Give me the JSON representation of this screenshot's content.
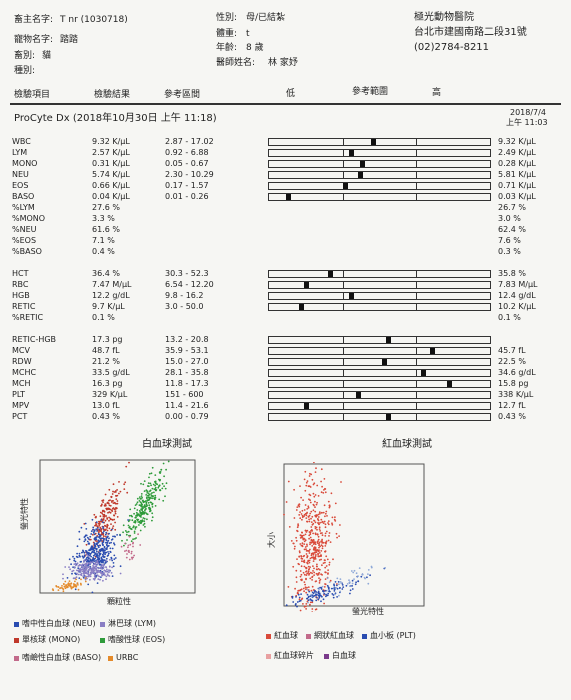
{
  "header": {
    "owner_label": "畜主名字:",
    "owner_value": "T nr (1030718)",
    "pet_label": "寵物名字:",
    "pet_value": "踏踏",
    "species_label": "畜別:",
    "species_value": "貓",
    "breed_label": "種別:",
    "breed_value": "",
    "sex_label": "性別:",
    "sex_value": "母/已結紮",
    "weight_label": "體重:",
    "weight_value": "t",
    "age_label": "年齡:",
    "age_value": "8 歲",
    "vet_label": "醫師姓名:",
    "vet_value": "林 家妤",
    "hospital_name": "極光動物醫院",
    "hospital_address": "台北市建國南路二段31號",
    "hospital_phone": "(02)2784-8211"
  },
  "columns": {
    "item": "檢驗項目",
    "result": "檢驗結果",
    "reference": "參考區間",
    "low": "低",
    "ref_range": "參考範圍",
    "high": "高"
  },
  "section": {
    "title": "ProCyte Dx (2018年10月30日 上午 11:18)",
    "history_date": "2018/7/4",
    "history_time": "上午 11:03"
  },
  "rows": [
    {
      "name": "WBC",
      "result": "9.32 K/µL",
      "ref": "2.87 - 17.02",
      "prev": "9.32 K/µL",
      "level": 0.47,
      "bar": "yes",
      "group": 1
    },
    {
      "name": "LYM",
      "result": "2.57 K/µL",
      "ref": "0.92 - 6.88",
      "prev": "2.49 K/µL",
      "level": 0.37,
      "bar": "yes",
      "group": 1
    },
    {
      "name": "MONO",
      "result": "0.31 K/µL",
      "ref": "0.05 - 0.67",
      "prev": "0.28 K/µL",
      "level": 0.42,
      "bar": "yes",
      "group": 1
    },
    {
      "name": "NEU",
      "result": "5.74 K/µL",
      "ref": "2.30 - 10.29",
      "prev": "5.81 K/µL",
      "level": 0.41,
      "bar": "yes",
      "group": 1
    },
    {
      "name": "EOS",
      "result": "0.66 K/µL",
      "ref": "0.17 - 1.57",
      "prev": "0.71 K/µL",
      "level": 0.34,
      "bar": "yes",
      "group": 1
    },
    {
      "name": "BASO",
      "result": "0.04 K/µL",
      "ref": "0.01 - 0.26",
      "prev": "0.03 K/µL",
      "level": 0.08,
      "bar": "yes",
      "group": 1
    },
    {
      "name": "%LYM",
      "result": "27.6 %",
      "ref": "",
      "prev": "26.7 %",
      "level": null,
      "bar": "no",
      "group": 0
    },
    {
      "name": "%MONO",
      "result": "3.3 %",
      "ref": "",
      "prev": "3.0 %",
      "level": null,
      "bar": "no",
      "group": 0
    },
    {
      "name": "%NEU",
      "result": "61.6 %",
      "ref": "",
      "prev": "62.4 %",
      "level": null,
      "bar": "no",
      "group": 0
    },
    {
      "name": "%EOS",
      "result": "7.1 %",
      "ref": "",
      "prev": "7.6 %",
      "level": null,
      "bar": "no",
      "group": 0
    },
    {
      "name": "%BASO",
      "result": "0.4 %",
      "ref": "",
      "prev": "0.3 %",
      "level": null,
      "bar": "no",
      "group": 0
    },
    {
      "name": "HCT",
      "result": "36.4 %",
      "ref": "30.3 - 52.3",
      "prev": "35.8 %",
      "level": 0.27,
      "bar": "yes",
      "group": 2
    },
    {
      "name": "RBC",
      "result": "7.47 M/µL",
      "ref": "6.54 - 12.20",
      "prev": "7.83 M/µL",
      "level": 0.16,
      "bar": "yes",
      "group": 2
    },
    {
      "name": "HGB",
      "result": "12.2 g/dL",
      "ref": "9.8 - 16.2",
      "prev": "12.4 g/dL",
      "level": 0.37,
      "bar": "yes",
      "group": 2
    },
    {
      "name": "RETIC",
      "result": "9.7 K/µL",
      "ref": "3.0 - 50.0",
      "prev": "10.2 K/µL",
      "level": 0.14,
      "bar": "yes",
      "group": 2
    },
    {
      "name": "%RETIC",
      "result": "0.1 %",
      "ref": "",
      "prev": "0.1 %",
      "level": null,
      "bar": "no",
      "group": 0
    },
    {
      "name": "RETIC-HGB",
      "result": "17.3 pg",
      "ref": "13.2 - 20.8",
      "prev": "",
      "level": 0.54,
      "bar": "yes",
      "group": 3
    },
    {
      "name": "MCV",
      "result": "48.7 fL",
      "ref": "35.9 - 53.1",
      "prev": "45.7 fL",
      "level": 0.74,
      "bar": "yes",
      "group": 3
    },
    {
      "name": "RDW",
      "result": "21.2 %",
      "ref": "15.0 - 27.0",
      "prev": "22.5 %",
      "level": 0.52,
      "bar": "yes",
      "group": 3
    },
    {
      "name": "MCHC",
      "result": "33.5 g/dL",
      "ref": "28.1 - 35.8",
      "prev": "34.6 g/dL",
      "level": 0.7,
      "bar": "yes",
      "group": 3
    },
    {
      "name": "MCH",
      "result": "16.3 pg",
      "ref": "11.8 - 17.3",
      "prev": "15.8 pg",
      "level": 0.82,
      "bar": "yes",
      "group": 3
    },
    {
      "name": "PLT",
      "result": "329 K/µL",
      "ref": "151 - 600",
      "prev": "338 K/µL",
      "level": 0.4,
      "bar": "yes",
      "group": 3
    },
    {
      "name": "MPV",
      "result": "13.0 fL",
      "ref": "11.4 - 21.6",
      "prev": "12.7 fL",
      "level": 0.16,
      "bar": "yes",
      "group": 3
    },
    {
      "name": "PCT",
      "result": "0.43 %",
      "ref": "0.00 - 0.79",
      "prev": "0.43 %",
      "level": 0.54,
      "bar": "yes",
      "group": 3
    }
  ],
  "scatter_wbc": {
    "title": "白血球測試",
    "ylabel": "螢光特性",
    "xlabel": "顆粒性",
    "legend": [
      {
        "label": "嗜中性白血球 (NEU)",
        "color": "#2a4cb0"
      },
      {
        "label": "淋巴球 (LYM)",
        "color": "#8a7fc4"
      },
      {
        "label": "單核球 (MONO)",
        "color": "#c0392b"
      },
      {
        "label": "嗜酸性球 (EOS)",
        "color": "#2e9b3a"
      },
      {
        "label": "嗜鹼性白血球 (BASO)",
        "color": "#c26a8a"
      },
      {
        "label": "URBC",
        "color": "#e48a2a"
      }
    ]
  },
  "scatter_rbc": {
    "title": "紅血球測試",
    "ylabel": "大小",
    "xlabel": "螢光特性",
    "legend": [
      {
        "label": "紅血球",
        "color": "#d94a3a"
      },
      {
        "label": "網狀紅血球",
        "color": "#c26a8a"
      },
      {
        "label": "血小板 (PLT)",
        "color": "#2a4cb0"
      },
      {
        "label": "紅血球碎片",
        "color": "#e8a0a0"
      },
      {
        "label": "白血球",
        "color": "#7a3a8a"
      }
    ]
  }
}
